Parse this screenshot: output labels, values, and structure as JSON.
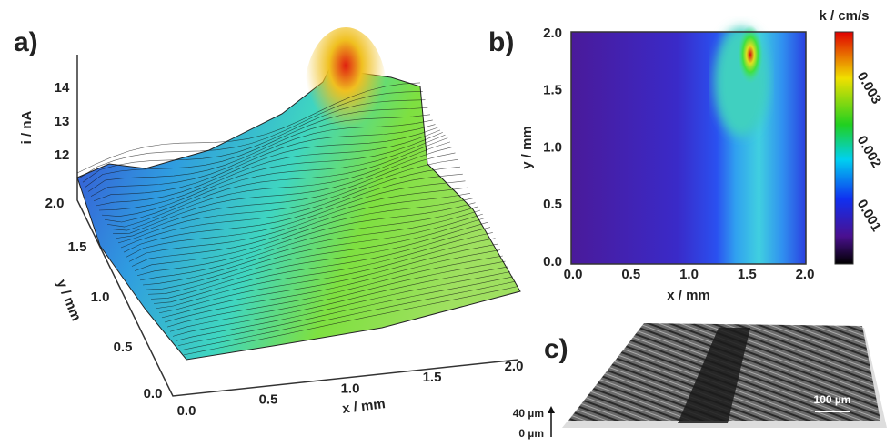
{
  "panel_a": {
    "label": "a)",
    "z_label": "i / nA",
    "z_ticks": [
      "14",
      "13",
      "12"
    ],
    "y_label": "y / mm",
    "y_ticks": [
      "2.0",
      "1.5",
      "1.0",
      "0.5",
      "0.0"
    ],
    "x_label": "x / mm",
    "x_ticks": [
      "0.0",
      "0.5",
      "1.0",
      "1.5",
      "2.0"
    ]
  },
  "panel_b": {
    "label": "b)",
    "y_label": "y / mm",
    "y_ticks": [
      "2.0",
      "1.5",
      "1.0",
      "0.5",
      "0.0"
    ],
    "x_label": "x / mm",
    "x_ticks": [
      "0.0",
      "0.5",
      "1.0",
      "1.5",
      "2.0"
    ],
    "colorbar_title": "k / cm/s",
    "colorbar_ticks": [
      "0.003",
      "0.002",
      "0.001"
    ]
  },
  "panel_c": {
    "label": "c)",
    "scale_top": "40 µm",
    "scale_bottom": "0 µm",
    "scale_bar": "100 µm"
  }
}
